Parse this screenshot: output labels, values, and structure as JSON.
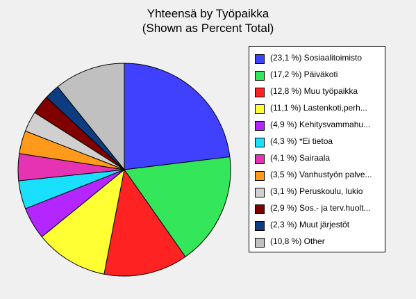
{
  "title": "Yhteensä by Työpaikka",
  "subtitle": "(Shown as Percent Total)",
  "chart_data": {
    "type": "pie",
    "title": "Yhteensä by Työpaikka",
    "subtitle": "(Shown as Percent Total)",
    "legend_position": "right",
    "slices": [
      {
        "label": "(23,1 %) Sosiaalitoimisto",
        "value": 23.1,
        "color": "#4040ff"
      },
      {
        "label": "(17,2 %) Päiväkoti",
        "value": 17.2,
        "color": "#33e65a"
      },
      {
        "label": "(12,8 %) Muu työpaikka",
        "value": 12.8,
        "color": "#ff2222"
      },
      {
        "label": "(11,1 %) Lastenkoti,perh...",
        "value": 11.1,
        "color": "#ffff33"
      },
      {
        "label": "(4,9 %) Kehitysvammahu...",
        "value": 4.9,
        "color": "#b326ff"
      },
      {
        "label": "(4,3 %) *Ei tietoa",
        "value": 4.3,
        "color": "#1ae0ff"
      },
      {
        "label": "(4,1 %) Sairaala",
        "value": 4.1,
        "color": "#e633b3"
      },
      {
        "label": "(3,5 %) Vanhustyön palve...",
        "value": 3.5,
        "color": "#ff9a1a"
      },
      {
        "label": "(3,1 %) Peruskoulu, lukio",
        "value": 3.1,
        "color": "#d0d0d0"
      },
      {
        "label": "(2,9 %) Sos.- ja terv.huolt...",
        "value": 2.9,
        "color": "#800000"
      },
      {
        "label": "(2,3 %) Muut järjestöt",
        "value": 2.3,
        "color": "#0d3d80"
      },
      {
        "label": "(10,8 %) Other",
        "value": 10.8,
        "color": "#c0c0c0"
      }
    ]
  }
}
